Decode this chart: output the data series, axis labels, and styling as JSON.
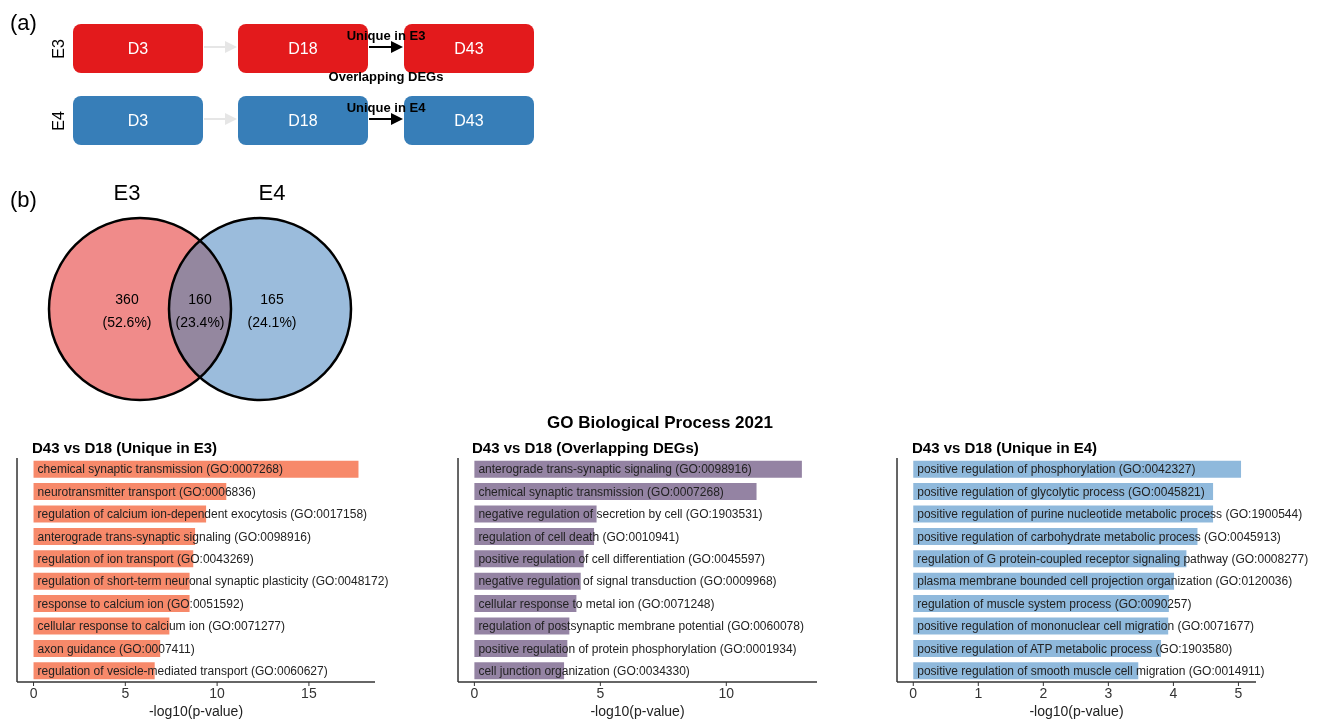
{
  "chart_data": [
    {
      "type": "other",
      "annotations": [
        "(a)",
        "D3",
        "D18",
        "D43",
        "Unique in E3",
        "Overlapping DEGs",
        "Unique in E4"
      ],
      "categories": [
        "E3",
        "E4"
      ],
      "colors": [
        "#e31a1c",
        "#377eb8"
      ]
    },
    {
      "type": "other",
      "annotations": [
        "(b)"
      ],
      "categories": [
        "E3",
        "E4"
      ],
      "value_labels": [
        "360",
        "(52.6%)",
        "160",
        "(23.4%)",
        "165",
        "(24.1%)"
      ],
      "colors": [
        "#f08b8a",
        "#94879f",
        "#9bbcdc"
      ]
    },
    {
      "type": "bar",
      "orientation": "horizontal",
      "title": "D43 vs D18 (Unique in E3)",
      "xlabel": "-log10(p-value)",
      "tick_labels": "x",
      "categories": [
        "chemical synaptic transmission (GO:0007268)",
        "neurotransmitter transport (GO:0006836)",
        "regulation of calcium ion-dependent exocytosis (GO:0017158)",
        "anterograde trans-synaptic signaling (GO:0098916)",
        "regulation of ion transport (GO:0043269)",
        "regulation of short-term neuronal synaptic plasticity (GO:0048172)",
        "response to calcium ion (GO:0051592)",
        "cellular response to calcium ion (GO:0071277)",
        "axon guidance (GO:0007411)",
        "regulation of vesicle-mediated transport (GO:0060627)"
      ],
      "values": [
        17.7,
        10.5,
        9.4,
        8.8,
        8.7,
        8.5,
        8.5,
        7.4,
        6.9,
        6.6
      ],
      "color": "#f7896a",
      "xlim": [
        -0.9,
        18.6
      ],
      "xticks": [
        0,
        5,
        10,
        15
      ]
    },
    {
      "type": "bar",
      "orientation": "horizontal",
      "title": "GO Biological Process 2021",
      "subtitle": "D43 vs D18 (Overlapping DEGs)",
      "xlabel": "-log10(p-value)",
      "tick_labels": "x",
      "categories": [
        "anterograde trans-synaptic signaling (GO:0098916)",
        "chemical synaptic transmission (GO:0007268)",
        "negative regulation of secretion by cell (GO:1903531)",
        "regulation of cell death (GO:0010941)",
        "positive regulation of cell differentiation (GO:0045597)",
        "negative regulation of signal transduction (GO:0009968)",
        "cellular response to metal ion (GO:0071248)",
        "regulation of postsynaptic membrane potential (GO:0060078)",
        "positive regulation of protein phosphorylation (GO:0001934)",
        "cell junction organization (GO:0034330)"
      ],
      "values": [
        13.0,
        11.2,
        4.85,
        4.75,
        4.34,
        4.22,
        4.05,
        3.77,
        3.69,
        3.56
      ],
      "color": "#9483a3",
      "xlim": [
        -0.65,
        13.6
      ],
      "xticks": [
        0,
        5,
        10
      ]
    },
    {
      "type": "bar",
      "orientation": "horizontal",
      "title": "D43 vs D18 (Unique in E4)",
      "xlabel": "-log10(p-value)",
      "tick_labels": "x",
      "categories": [
        "positive regulation of phosphorylation (GO:0042327)",
        "positive regulation of glycolytic process (GO:0045821)",
        "positive regulation of purine nucleotide metabolic process (GO:1900544)",
        "positive regulation of carbohydrate metabolic process (GO:0045913)",
        "regulation of G protein-coupled receptor signaling pathway (GO:0008277)",
        "plasma membrane bounded cell projection organization (GO:0120036)",
        "regulation of muscle system process (GO:0090257)",
        "positive regulation of mononuclear cell migration (GO:0071677)",
        "positive regulation of ATP metabolic process (GO:1903580)",
        "positive regulation of smooth muscle cell migration (GO:0014911)"
      ],
      "values": [
        5.04,
        4.61,
        4.61,
        4.37,
        4.2,
        4.01,
        3.93,
        3.92,
        3.81,
        3.46
      ],
      "color": "#8fb9dc",
      "xlim": [
        -0.25,
        5.27
      ],
      "xticks": [
        0,
        1,
        2,
        3,
        4,
        5
      ]
    }
  ]
}
